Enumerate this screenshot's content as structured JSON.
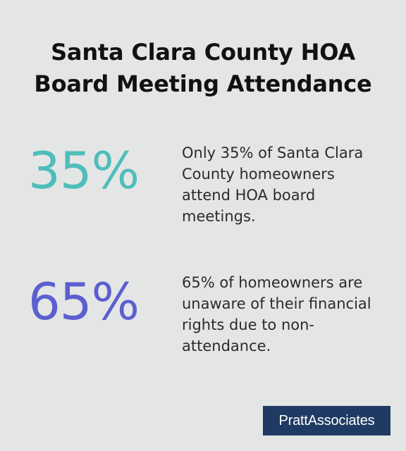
{
  "title": "Santa Clara County HOA Board Meeting Attendance",
  "stats": [
    {
      "value": "35%",
      "text": "Only 35% of Santa Clara County homeowners attend HOA board meetings.",
      "color": "#4fbdbb"
    },
    {
      "value": "65%",
      "text": "65% of homeowners are unaware of their financial rights due to non-attendance.",
      "color": "#5b5fcf"
    }
  ],
  "logo": {
    "text": "PrattAssociates",
    "background": "#1f3b63"
  },
  "colors": {
    "background": "#e4e6e6",
    "title": "#111111",
    "body_text": "#2b2b2b"
  }
}
